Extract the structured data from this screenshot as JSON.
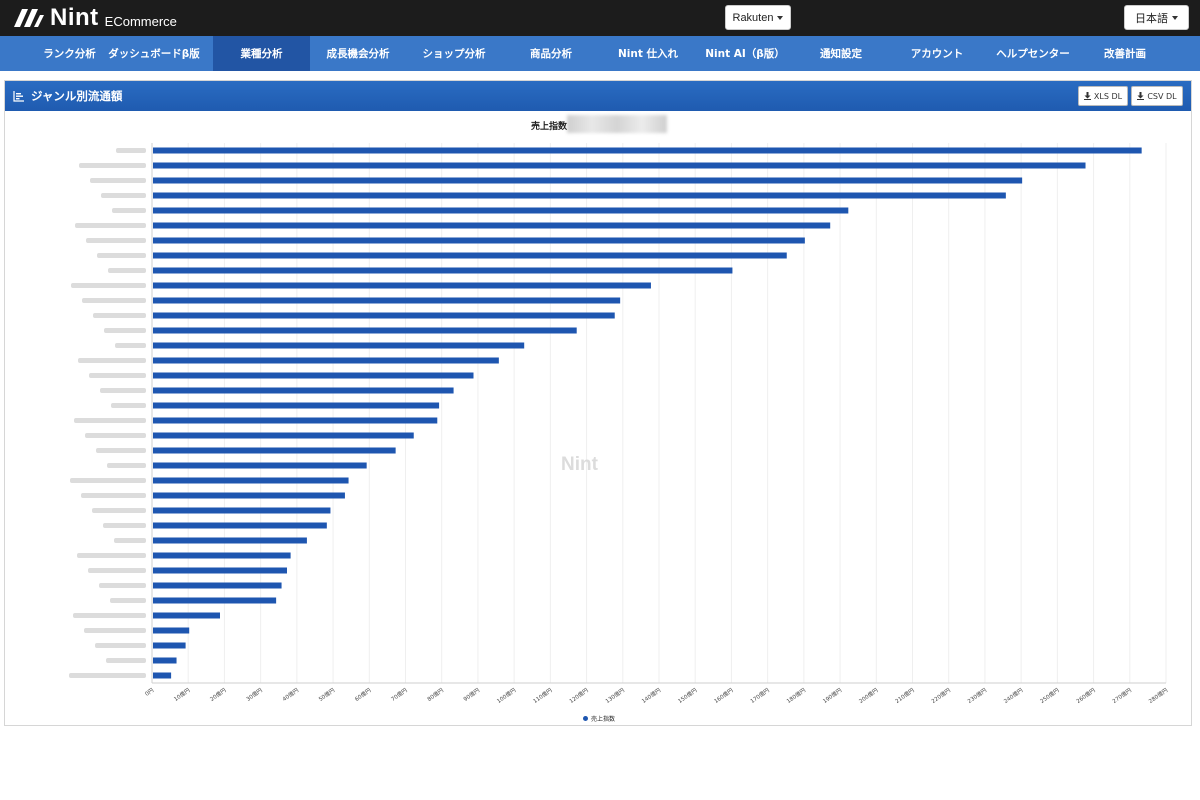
{
  "header": {
    "brand": "Nint",
    "brand_sub": "ECommerce",
    "marketplace": "Rakuten",
    "language": "日本語"
  },
  "nav": {
    "items": [
      {
        "label": "ランク分析",
        "active": false
      },
      {
        "label": "ダッシュボードβ版",
        "active": false
      },
      {
        "label": "業種分析",
        "active": true
      },
      {
        "label": "成長機会分析",
        "active": false
      },
      {
        "label": "ショップ分析",
        "active": false
      },
      {
        "label": "商品分析",
        "active": false
      },
      {
        "label": "Nint 仕入れ",
        "active": false
      },
      {
        "label": "Nint AI（β版）",
        "active": false
      },
      {
        "label": "通知設定",
        "active": false
      },
      {
        "label": "アカウント",
        "active": false
      },
      {
        "label": "ヘルプセンター",
        "active": false
      },
      {
        "label": "改善計画",
        "active": false
      }
    ]
  },
  "panel": {
    "title": "ジャンル別流通額",
    "xls_label": "XLS DL",
    "csv_label": "CSV DL"
  },
  "chart_data": {
    "type": "bar",
    "orientation": "horizontal",
    "title": "売上指数",
    "categories_blurred": true,
    "x_ticks": [
      "0円",
      "10億円",
      "20億円",
      "30億円",
      "40億円",
      "50億円",
      "60億円",
      "70億円",
      "80億円",
      "90億円",
      "100億円",
      "110億円",
      "120億円",
      "130億円",
      "140億円",
      "150億円",
      "160億円",
      "170億円",
      "180億円",
      "190億円",
      "200億円",
      "210億円",
      "220億円",
      "230億円",
      "240億円",
      "250億円",
      "260億円",
      "270億円",
      "280億円"
    ],
    "xlim": [
      0,
      280
    ],
    "x_unit": "億円",
    "grid": true,
    "legend_position": "bottom",
    "series": [
      {
        "name": "売上指数",
        "color": "#1e56b0",
        "values": [
          273,
          257.5,
          240,
          235.5,
          192,
          187,
          180,
          175,
          160,
          137.5,
          129,
          127.5,
          117,
          102.5,
          95.5,
          88.5,
          83,
          79,
          78.5,
          72,
          67,
          59,
          54,
          53,
          49,
          48,
          42.5,
          38,
          37,
          35.5,
          34,
          18.5,
          10,
          9,
          6.5,
          5
        ]
      }
    ]
  },
  "watermark": "Nint",
  "colors": {
    "topbar": "#1c1c1c",
    "nav": "#3a78c8",
    "nav_active": "#2255a4",
    "bar": "#1e56b0"
  }
}
